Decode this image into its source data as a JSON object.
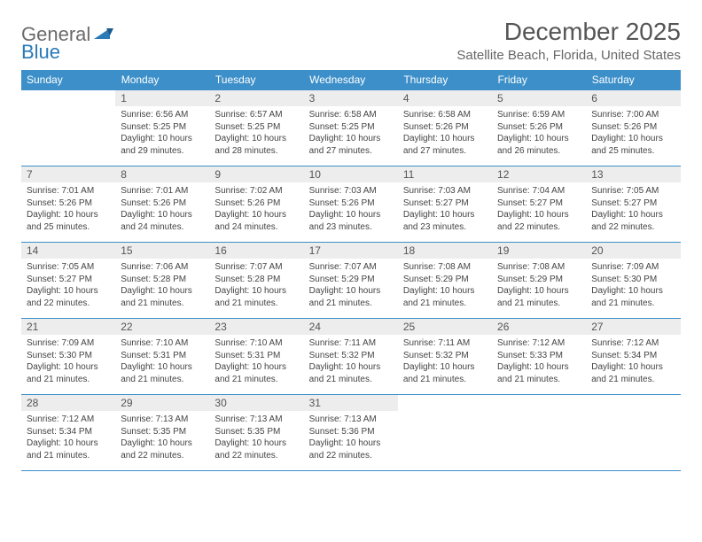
{
  "brand": {
    "part1": "General",
    "part2": "Blue"
  },
  "title": "December 2025",
  "location": "Satellite Beach, Florida, United States",
  "colors": {
    "header_bg": "#3c8fc8",
    "header_text": "#ffffff",
    "daynum_bg": "#ededed",
    "border": "#3c8fc8",
    "body_text": "#444444",
    "title_text": "#555555",
    "location_text": "#666666",
    "logo_gray": "#6b6b6b",
    "logo_blue": "#2a7ab8"
  },
  "weekdays": [
    "Sunday",
    "Monday",
    "Tuesday",
    "Wednesday",
    "Thursday",
    "Friday",
    "Saturday"
  ],
  "weeks": [
    [
      null,
      {
        "n": "1",
        "sr": "Sunrise: 6:56 AM",
        "ss": "Sunset: 5:25 PM",
        "dl": "Daylight: 10 hours and 29 minutes."
      },
      {
        "n": "2",
        "sr": "Sunrise: 6:57 AM",
        "ss": "Sunset: 5:25 PM",
        "dl": "Daylight: 10 hours and 28 minutes."
      },
      {
        "n": "3",
        "sr": "Sunrise: 6:58 AM",
        "ss": "Sunset: 5:25 PM",
        "dl": "Daylight: 10 hours and 27 minutes."
      },
      {
        "n": "4",
        "sr": "Sunrise: 6:58 AM",
        "ss": "Sunset: 5:26 PM",
        "dl": "Daylight: 10 hours and 27 minutes."
      },
      {
        "n": "5",
        "sr": "Sunrise: 6:59 AM",
        "ss": "Sunset: 5:26 PM",
        "dl": "Daylight: 10 hours and 26 minutes."
      },
      {
        "n": "6",
        "sr": "Sunrise: 7:00 AM",
        "ss": "Sunset: 5:26 PM",
        "dl": "Daylight: 10 hours and 25 minutes."
      }
    ],
    [
      {
        "n": "7",
        "sr": "Sunrise: 7:01 AM",
        "ss": "Sunset: 5:26 PM",
        "dl": "Daylight: 10 hours and 25 minutes."
      },
      {
        "n": "8",
        "sr": "Sunrise: 7:01 AM",
        "ss": "Sunset: 5:26 PM",
        "dl": "Daylight: 10 hours and 24 minutes."
      },
      {
        "n": "9",
        "sr": "Sunrise: 7:02 AM",
        "ss": "Sunset: 5:26 PM",
        "dl": "Daylight: 10 hours and 24 minutes."
      },
      {
        "n": "10",
        "sr": "Sunrise: 7:03 AM",
        "ss": "Sunset: 5:26 PM",
        "dl": "Daylight: 10 hours and 23 minutes."
      },
      {
        "n": "11",
        "sr": "Sunrise: 7:03 AM",
        "ss": "Sunset: 5:27 PM",
        "dl": "Daylight: 10 hours and 23 minutes."
      },
      {
        "n": "12",
        "sr": "Sunrise: 7:04 AM",
        "ss": "Sunset: 5:27 PM",
        "dl": "Daylight: 10 hours and 22 minutes."
      },
      {
        "n": "13",
        "sr": "Sunrise: 7:05 AM",
        "ss": "Sunset: 5:27 PM",
        "dl": "Daylight: 10 hours and 22 minutes."
      }
    ],
    [
      {
        "n": "14",
        "sr": "Sunrise: 7:05 AM",
        "ss": "Sunset: 5:27 PM",
        "dl": "Daylight: 10 hours and 22 minutes."
      },
      {
        "n": "15",
        "sr": "Sunrise: 7:06 AM",
        "ss": "Sunset: 5:28 PM",
        "dl": "Daylight: 10 hours and 21 minutes."
      },
      {
        "n": "16",
        "sr": "Sunrise: 7:07 AM",
        "ss": "Sunset: 5:28 PM",
        "dl": "Daylight: 10 hours and 21 minutes."
      },
      {
        "n": "17",
        "sr": "Sunrise: 7:07 AM",
        "ss": "Sunset: 5:29 PM",
        "dl": "Daylight: 10 hours and 21 minutes."
      },
      {
        "n": "18",
        "sr": "Sunrise: 7:08 AM",
        "ss": "Sunset: 5:29 PM",
        "dl": "Daylight: 10 hours and 21 minutes."
      },
      {
        "n": "19",
        "sr": "Sunrise: 7:08 AM",
        "ss": "Sunset: 5:29 PM",
        "dl": "Daylight: 10 hours and 21 minutes."
      },
      {
        "n": "20",
        "sr": "Sunrise: 7:09 AM",
        "ss": "Sunset: 5:30 PM",
        "dl": "Daylight: 10 hours and 21 minutes."
      }
    ],
    [
      {
        "n": "21",
        "sr": "Sunrise: 7:09 AM",
        "ss": "Sunset: 5:30 PM",
        "dl": "Daylight: 10 hours and 21 minutes."
      },
      {
        "n": "22",
        "sr": "Sunrise: 7:10 AM",
        "ss": "Sunset: 5:31 PM",
        "dl": "Daylight: 10 hours and 21 minutes."
      },
      {
        "n": "23",
        "sr": "Sunrise: 7:10 AM",
        "ss": "Sunset: 5:31 PM",
        "dl": "Daylight: 10 hours and 21 minutes."
      },
      {
        "n": "24",
        "sr": "Sunrise: 7:11 AM",
        "ss": "Sunset: 5:32 PM",
        "dl": "Daylight: 10 hours and 21 minutes."
      },
      {
        "n": "25",
        "sr": "Sunrise: 7:11 AM",
        "ss": "Sunset: 5:32 PM",
        "dl": "Daylight: 10 hours and 21 minutes."
      },
      {
        "n": "26",
        "sr": "Sunrise: 7:12 AM",
        "ss": "Sunset: 5:33 PM",
        "dl": "Daylight: 10 hours and 21 minutes."
      },
      {
        "n": "27",
        "sr": "Sunrise: 7:12 AM",
        "ss": "Sunset: 5:34 PM",
        "dl": "Daylight: 10 hours and 21 minutes."
      }
    ],
    [
      {
        "n": "28",
        "sr": "Sunrise: 7:12 AM",
        "ss": "Sunset: 5:34 PM",
        "dl": "Daylight: 10 hours and 21 minutes."
      },
      {
        "n": "29",
        "sr": "Sunrise: 7:13 AM",
        "ss": "Sunset: 5:35 PM",
        "dl": "Daylight: 10 hours and 22 minutes."
      },
      {
        "n": "30",
        "sr": "Sunrise: 7:13 AM",
        "ss": "Sunset: 5:35 PM",
        "dl": "Daylight: 10 hours and 22 minutes."
      },
      {
        "n": "31",
        "sr": "Sunrise: 7:13 AM",
        "ss": "Sunset: 5:36 PM",
        "dl": "Daylight: 10 hours and 22 minutes."
      },
      null,
      null,
      null
    ]
  ]
}
